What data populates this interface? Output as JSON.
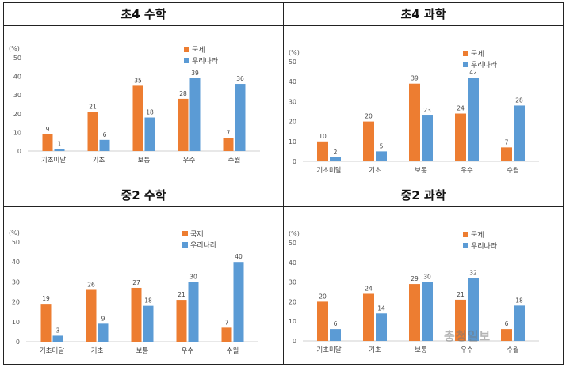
{
  "colors": {
    "intl": "#ED7D31",
    "korea": "#5B9BD5"
  },
  "watermark": "충청일보",
  "chart_data": [
    {
      "type": "bar",
      "title": "초4 수학",
      "ylabel": "(%)",
      "ylim": [
        0,
        50
      ],
      "yticks": [
        0,
        10,
        20,
        30,
        40,
        50
      ],
      "categories": [
        "기초미달",
        "기초",
        "보통",
        "우수",
        "수월"
      ],
      "series": [
        {
          "name": "국제",
          "values": [
            9,
            21,
            35,
            28,
            7
          ]
        },
        {
          "name": "우리나라",
          "values": [
            1,
            6,
            18,
            39,
            36
          ]
        }
      ],
      "legend": "top-right"
    },
    {
      "type": "bar",
      "title": "초4 과학",
      "ylabel": "(%)",
      "ylim": [
        0,
        50
      ],
      "yticks": [
        0,
        10,
        20,
        30,
        40,
        50
      ],
      "categories": [
        "기초미달",
        "기초",
        "보통",
        "우수",
        "수월"
      ],
      "series": [
        {
          "name": "국제",
          "values": [
            10,
            20,
            39,
            24,
            7
          ]
        },
        {
          "name": "우리나라",
          "values": [
            2,
            5,
            23,
            42,
            28
          ]
        }
      ],
      "legend": "top-right"
    },
    {
      "type": "bar",
      "title": "중2 수학",
      "ylabel": "(%)",
      "ylim": [
        0,
        50
      ],
      "yticks": [
        0,
        10,
        20,
        30,
        40,
        50
      ],
      "categories": [
        "기초미달",
        "기초",
        "보통",
        "우수",
        "수월"
      ],
      "series": [
        {
          "name": "국제",
          "values": [
            19,
            26,
            27,
            21,
            7
          ]
        },
        {
          "name": "우리나라",
          "values": [
            3,
            9,
            18,
            30,
            40
          ]
        }
      ],
      "legend": "top-right"
    },
    {
      "type": "bar",
      "title": "중2 과학",
      "ylabel": "(%)",
      "ylim": [
        0,
        50
      ],
      "yticks": [
        0,
        10,
        20,
        30,
        40,
        50
      ],
      "categories": [
        "기초미달",
        "기초",
        "보통",
        "우수",
        "수월"
      ],
      "series": [
        {
          "name": "국제",
          "values": [
            20,
            24,
            29,
            21,
            6
          ]
        },
        {
          "name": "우리나라",
          "values": [
            6,
            14,
            30,
            32,
            18
          ]
        }
      ],
      "legend": "top-right"
    }
  ]
}
